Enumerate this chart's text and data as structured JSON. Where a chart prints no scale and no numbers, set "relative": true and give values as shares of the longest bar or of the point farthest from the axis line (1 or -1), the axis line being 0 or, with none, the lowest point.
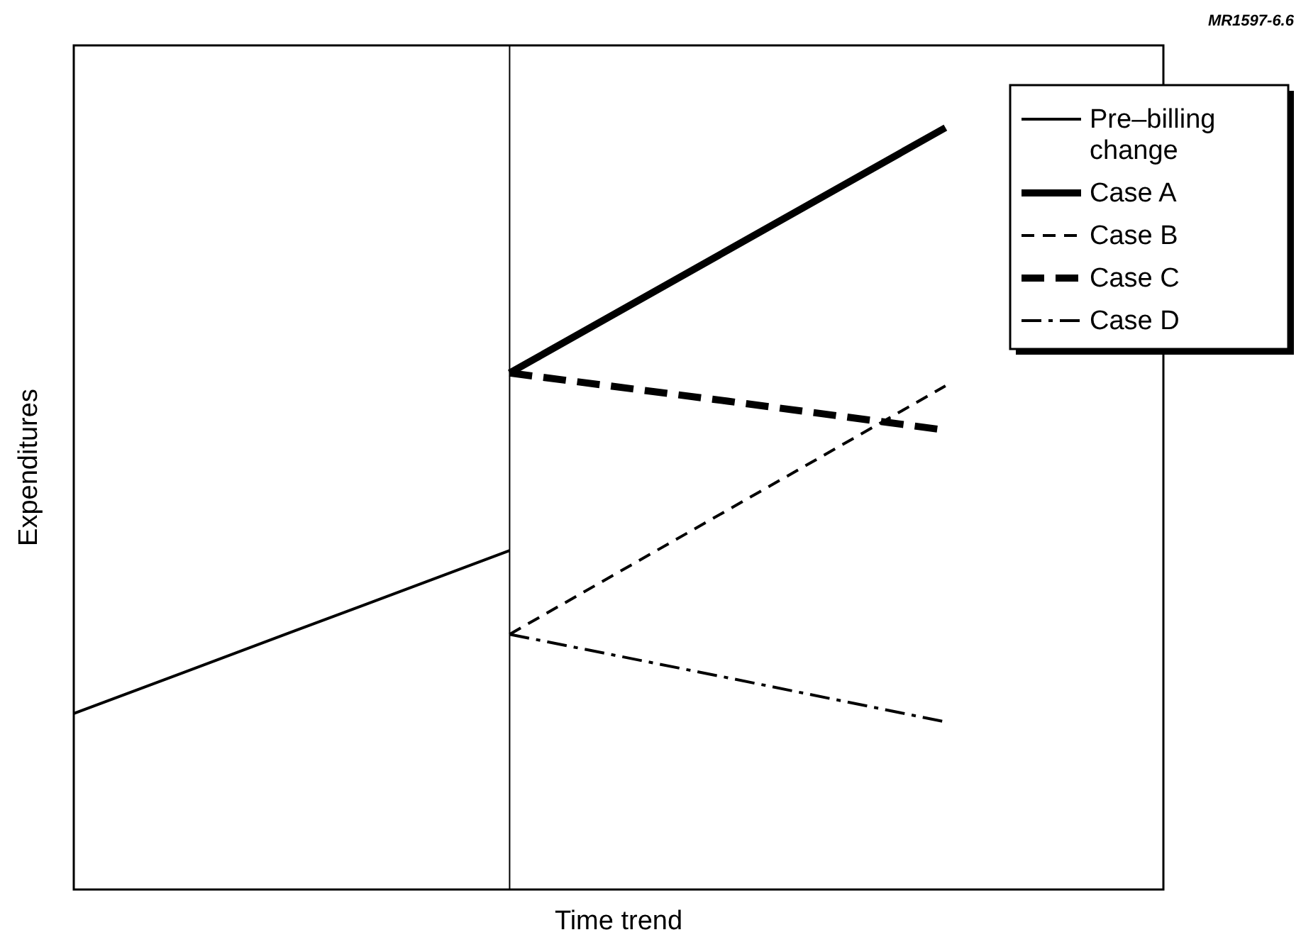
{
  "chart_data": {
    "type": "line",
    "relative": true,
    "xlabel": "Time trend",
    "ylabel": "Expenditures",
    "categories": [
      null,
      null,
      null,
      null,
      null,
      null
    ],
    "series": [
      {
        "name": "Pre–billing change",
        "color": "#000000",
        "values": [
          0.231,
          0.338,
          0.445,
          null,
          null,
          null
        ],
        "line_style": "solid"
      },
      {
        "name": "Case A",
        "color": "#000000",
        "values": [
          null,
          null,
          0.678,
          0.839,
          1,
          null
        ],
        "line_style": "solid"
      },
      {
        "name": "Case B",
        "color": "#000000",
        "values": [
          null,
          null,
          0.335,
          0.498,
          0.661,
          null
        ],
        "line_style": "dashed"
      },
      {
        "name": "Case C",
        "color": "#000000",
        "values": [
          null,
          null,
          0.678,
          0.641,
          0.603,
          null
        ],
        "line_style": "dashed"
      },
      {
        "name": "Case D",
        "color": "#000000",
        "values": [
          null,
          null,
          0.335,
          0.278,
          0.22,
          null
        ],
        "line_style": "dashdot"
      }
    ],
    "legend": "top right",
    "annotations": [
      "MR1597-6.6"
    ]
  }
}
